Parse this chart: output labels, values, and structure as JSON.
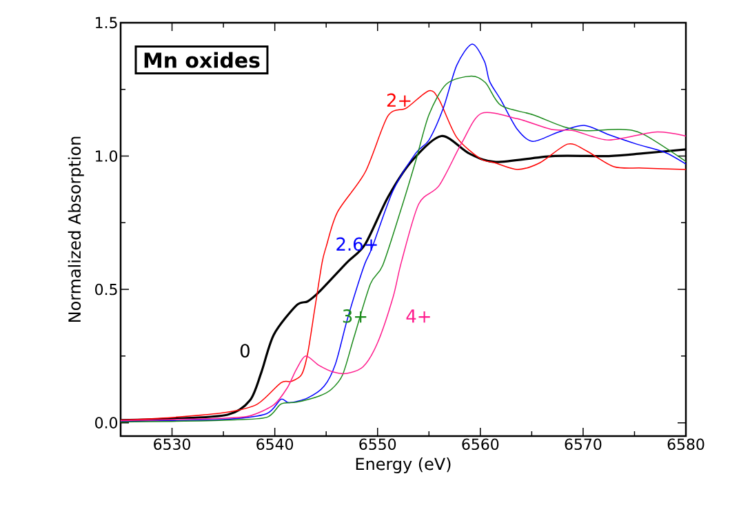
{
  "chart_data": {
    "type": "line",
    "title": "Mn oxides",
    "xlabel": "Energy (eV)",
    "ylabel": "Normalized Absorption",
    "xlim": [
      6525,
      6580
    ],
    "ylim": [
      -0.05,
      1.5
    ],
    "xticks": [
      6530,
      6540,
      6550,
      6560,
      6570,
      6580
    ],
    "yticks": [
      {
        "value": 0,
        "label": "0.0"
      },
      {
        "value": 0.5,
        "label": "0.5"
      },
      {
        "value": 1,
        "label": "1.0"
      },
      {
        "value": 1.5,
        "label": "1.5"
      }
    ],
    "grid": false,
    "legend": false,
    "marker": "none",
    "line_style": "solid",
    "series": [
      {
        "name": "0",
        "color": "#000000",
        "x": [
          6525,
          6530,
          6535.4,
          6537.6,
          6538.7,
          6539.9,
          6542.1,
          6543.2,
          6544.3,
          6547.0,
          6548.8,
          6551.0,
          6553.3,
          6556.2,
          6558.9,
          6561.5,
          6567,
          6572.5,
          6575.8,
          6580
        ],
        "values": [
          0.01,
          0.015,
          0.03,
          0.085,
          0.19,
          0.33,
          0.44,
          0.455,
          0.49,
          0.6,
          0.67,
          0.845,
          0.98,
          1.075,
          1.01,
          0.978,
          1.0,
          1.0,
          1.01,
          1.025
        ]
      },
      {
        "name": "2+",
        "color": "#ff0000",
        "x": [
          6525,
          6530,
          6535.4,
          6538.3,
          6540.6,
          6541.6,
          6542.6,
          6543.2,
          6543.9,
          6544.6,
          6545.0,
          6546.1,
          6548.8,
          6551.0,
          6552.8,
          6555.0,
          6556.0,
          6557.7,
          6560.0,
          6561.4,
          6563.6,
          6565.8,
          6568.5,
          6570.3,
          6573.0,
          6575.8,
          6580
        ],
        "values": [
          0.01,
          0.02,
          0.04,
          0.07,
          0.15,
          0.155,
          0.18,
          0.26,
          0.43,
          0.6,
          0.66,
          0.79,
          0.94,
          1.15,
          1.18,
          1.245,
          1.21,
          1.07,
          0.99,
          0.975,
          0.95,
          0.975,
          1.045,
          1.02,
          0.96,
          0.955,
          0.95
        ]
      },
      {
        "name": "2.6+",
        "color": "#0000ff",
        "x": [
          6525,
          6530,
          6535.4,
          6539.2,
          6540.6,
          6541.4,
          6543.2,
          6544.8,
          6545.9,
          6547.0,
          6548.1,
          6548.8,
          6549.5,
          6551.5,
          6553.7,
          6555.0,
          6556.4,
          6557.7,
          6559.2,
          6560.4,
          6560.9,
          6562.0,
          6563.6,
          6565.1,
          6567.6,
          6570.1,
          6572.5,
          6575.2,
          6577.9,
          6580
        ],
        "values": [
          0.005,
          0.008,
          0.013,
          0.034,
          0.088,
          0.075,
          0.093,
          0.137,
          0.22,
          0.38,
          0.52,
          0.6,
          0.66,
          0.87,
          1.01,
          1.06,
          1.18,
          1.34,
          1.42,
          1.355,
          1.28,
          1.21,
          1.1,
          1.055,
          1.09,
          1.115,
          1.08,
          1.045,
          1.015,
          0.97
        ]
      },
      {
        "name": "3+",
        "color": "#1a8a1a",
        "x": [
          6525,
          6530,
          6535.4,
          6539.2,
          6540.6,
          6542.1,
          6544.3,
          6545.5,
          6546.6,
          6547.7,
          6549.3,
          6550.5,
          6552.2,
          6553.7,
          6555.0,
          6556.7,
          6559.1,
          6560.5,
          6562.0,
          6565.1,
          6568.1,
          6570.3,
          6573.6,
          6575.8,
          6580
        ],
        "values": [
          0.003,
          0.005,
          0.01,
          0.02,
          0.07,
          0.077,
          0.1,
          0.125,
          0.18,
          0.32,
          0.52,
          0.59,
          0.79,
          0.98,
          1.155,
          1.27,
          1.3,
          1.275,
          1.19,
          1.155,
          1.11,
          1.095,
          1.1,
          1.083,
          0.98
        ]
      },
      {
        "name": "4+",
        "color": "#ff1a8c",
        "x": [
          6525,
          6530,
          6535.4,
          6537.6,
          6539.9,
          6541.2,
          6542.1,
          6543.0,
          6544.3,
          6545.7,
          6547.0,
          6548.6,
          6550.0,
          6551.5,
          6552.3,
          6554.0,
          6556.0,
          6558.2,
          6560.1,
          6563.6,
          6566.9,
          6569.1,
          6572.5,
          6577.0,
          6580
        ],
        "values": [
          0.008,
          0.012,
          0.018,
          0.026,
          0.067,
          0.13,
          0.2,
          0.25,
          0.215,
          0.19,
          0.185,
          0.21,
          0.3,
          0.47,
          0.6,
          0.82,
          0.89,
          1.05,
          1.16,
          1.14,
          1.1,
          1.095,
          1.06,
          1.09,
          1.075
        ]
      }
    ]
  }
}
